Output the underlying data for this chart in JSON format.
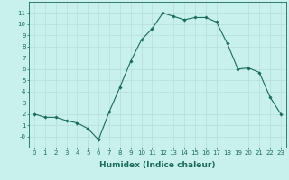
{
  "x": [
    0,
    1,
    2,
    3,
    4,
    5,
    6,
    7,
    8,
    9,
    10,
    11,
    12,
    13,
    14,
    15,
    16,
    17,
    18,
    19,
    20,
    21,
    22,
    23
  ],
  "y": [
    2,
    1.7,
    1.7,
    1.4,
    1.2,
    0.7,
    -0.3,
    2.2,
    4.4,
    6.7,
    8.6,
    9.6,
    11.0,
    10.7,
    10.4,
    10.6,
    10.6,
    10.2,
    8.3,
    6.0,
    6.1,
    5.7,
    3.5,
    2.0
  ],
  "xlabel": "Humidex (Indice chaleur)",
  "ylabel": "",
  "line_color": "#1a6b5a",
  "marker": "D",
  "marker_size": 1.8,
  "bg_color": "#c8f0ec",
  "grid_color": "#b8dcd8",
  "axis_color": "#1a6b5a",
  "tick_color": "#1a6b5a",
  "ylim": [
    -1,
    12
  ],
  "xlim": [
    -0.5,
    23.5
  ],
  "yticks": [
    0,
    1,
    2,
    3,
    4,
    5,
    6,
    7,
    8,
    9,
    10,
    11
  ],
  "xticks": [
    0,
    1,
    2,
    3,
    4,
    5,
    6,
    7,
    8,
    9,
    10,
    11,
    12,
    13,
    14,
    15,
    16,
    17,
    18,
    19,
    20,
    21,
    22,
    23
  ],
  "ytick_labels": [
    "-0",
    "1",
    "2",
    "3",
    "4",
    "5",
    "6",
    "7",
    "8",
    "9",
    "10",
    "11"
  ],
  "xtick_labels": [
    "0",
    "1",
    "2",
    "3",
    "4",
    "5",
    "6",
    "7",
    "8",
    "9",
    "10",
    "11",
    "12",
    "13",
    "14",
    "15",
    "16",
    "17",
    "18",
    "19",
    "20",
    "21",
    "22",
    "23"
  ],
  "tick_font_size": 5.0,
  "label_font_size": 6.5
}
